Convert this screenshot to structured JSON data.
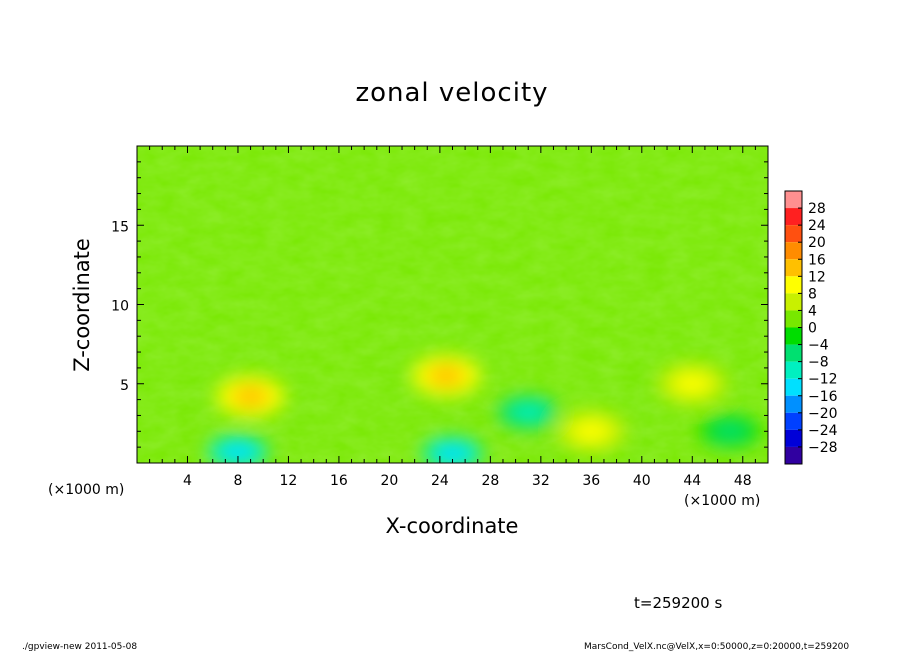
{
  "chart_data": {
    "type": "heatmap",
    "title": "zonal velocity",
    "xlabel": "X-coordinate",
    "ylabel": "Z-coordinate",
    "x_unit_left": "(×1000 m)",
    "x_unit_right": "(×1000 m)",
    "xlim": [
      0,
      50
    ],
    "ylim": [
      0,
      20
    ],
    "xticks": [
      "4",
      "8",
      "12",
      "16",
      "20",
      "24",
      "28",
      "32",
      "36",
      "40",
      "44",
      "48"
    ],
    "yticks": [
      "5",
      "10",
      "15"
    ],
    "colorbar": {
      "min": -30,
      "max": 30,
      "step": 4,
      "labels": [
        "28",
        "24",
        "20",
        "16",
        "12",
        "8",
        "4",
        "0",
        "−4",
        "−8",
        "−12",
        "−16",
        "−20",
        "−24",
        "−28"
      ],
      "colors": [
        "#ff9090",
        "#ff2020",
        "#ff5010",
        "#ff8c00",
        "#ffc000",
        "#ffff00",
        "#c8f000",
        "#78e800",
        "#00dd00",
        "#00e070",
        "#00f0c0",
        "#00e0ff",
        "#0090ff",
        "#0040ff",
        "#0000d8",
        "#3000a0"
      ]
    },
    "features": [
      {
        "x": 9,
        "z": 4.2,
        "value": 7
      },
      {
        "x": 24.5,
        "z": 5.5,
        "value": 8
      },
      {
        "x": 8,
        "z": 0.7,
        "value": -11
      },
      {
        "x": 25,
        "z": 0.6,
        "value": -10
      },
      {
        "x": 36,
        "z": 2.0,
        "value": 4
      },
      {
        "x": 31,
        "z": 3.2,
        "value": -6
      },
      {
        "x": 44,
        "z": 5.0,
        "value": 3
      },
      {
        "x": 47,
        "z": 2.0,
        "value": -5
      }
    ],
    "time": "t=259200 s"
  },
  "footer": {
    "left": "./gpview-new   2011-05-08",
    "right": "MarsCond_VelX.nc@VelX,x=0:50000,z=0:20000,t=259200"
  }
}
